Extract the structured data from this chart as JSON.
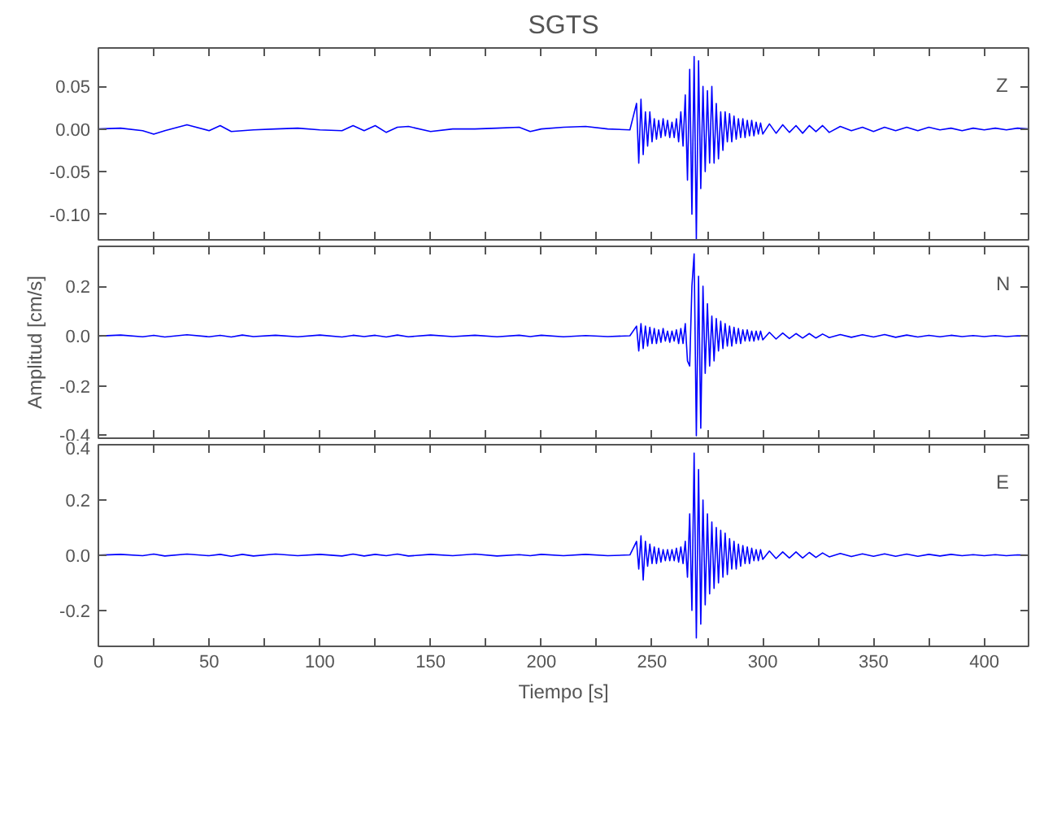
{
  "chart_data": [
    {
      "type": "line",
      "title": "SGTS",
      "annotations": [
        "Z"
      ],
      "tick_labels": "y",
      "grid": false,
      "marker": "none",
      "line_style": "solid",
      "xlim": [
        0,
        420
      ],
      "xticks": [
        0,
        {
          "value": 25,
          "label": null
        },
        50,
        {
          "value": 75,
          "label": null
        },
        100,
        {
          "value": 125,
          "label": null
        },
        150,
        {
          "value": 175,
          "label": null
        },
        200,
        {
          "value": 225,
          "label": null
        },
        250,
        {
          "value": 275,
          "label": null
        },
        300,
        {
          "value": 325,
          "label": null
        },
        350,
        {
          "value": 375,
          "label": null
        },
        400
      ],
      "ylim": [
        -0.13,
        0.095
      ],
      "yticks": [
        {
          "value": -0.1,
          "label": "-0.10"
        },
        {
          "value": -0.05,
          "label": "-0.05"
        },
        {
          "value": 0,
          "label": "0.00"
        },
        {
          "value": 0.05,
          "label": "0.05"
        }
      ],
      "x": [
        0,
        10,
        20,
        25,
        30,
        40,
        50,
        55,
        60,
        65,
        70,
        80,
        90,
        100,
        110,
        115,
        120,
        125,
        130,
        135,
        140,
        150,
        160,
        170,
        180,
        190,
        195,
        200,
        210,
        220,
        230,
        240,
        243,
        244,
        245,
        246,
        247,
        248,
        249,
        250,
        251,
        252,
        253,
        254,
        255,
        256,
        257,
        258,
        259,
        260,
        261,
        262,
        263,
        264,
        265,
        266,
        267,
        268,
        269,
        270,
        271,
        272,
        273,
        274,
        275,
        276,
        277,
        278,
        279,
        280,
        281,
        282,
        283,
        284,
        285,
        286,
        287,
        288,
        289,
        290,
        291,
        292,
        293,
        294,
        295,
        296,
        297,
        298,
        299,
        300,
        303,
        306,
        309,
        312,
        315,
        318,
        321,
        324,
        327,
        330,
        335,
        340,
        345,
        350,
        355,
        360,
        365,
        370,
        375,
        380,
        385,
        390,
        395,
        400,
        405,
        410,
        415,
        420
      ],
      "series": [
        {
          "color": "#0000ff",
          "values": [
            0,
            0.001,
            -0.002,
            -0.006,
            -0.002,
            0.005,
            -0.002,
            0.004,
            -0.003,
            -0.002,
            -0.001,
            0,
            0.001,
            -0.001,
            -0.002,
            0.004,
            -0.002,
            0.004,
            -0.004,
            0.002,
            0.003,
            -0.003,
            0,
            0,
            0.001,
            0.002,
            -0.003,
            0,
            0.002,
            0.003,
            0,
            -0.001,
            0.03,
            -0.04,
            0.035,
            -0.03,
            0.02,
            -0.02,
            0.02,
            -0.015,
            0.012,
            -0.012,
            0.01,
            -0.01,
            0.012,
            -0.008,
            0.01,
            -0.01,
            0.008,
            -0.01,
            0.012,
            -0.015,
            0.02,
            -0.02,
            0.04,
            -0.06,
            0.07,
            -0.1,
            0.085,
            -0.13,
            0.08,
            -0.07,
            0.05,
            -0.05,
            0.045,
            -0.04,
            0.05,
            -0.04,
            0.03,
            -0.035,
            0.02,
            -0.025,
            0.02,
            -0.015,
            0.018,
            -0.015,
            0.015,
            -0.012,
            0.012,
            -0.01,
            0.012,
            -0.01,
            0.01,
            -0.008,
            0.01,
            -0.008,
            0.008,
            -0.006,
            0.007,
            -0.006,
            0.006,
            -0.005,
            0.005,
            -0.004,
            0.004,
            -0.005,
            0.004,
            -0.003,
            0.004,
            -0.004,
            0.003,
            -0.002,
            0.002,
            -0.003,
            0.002,
            -0.002,
            0.002,
            -0.002,
            0.002,
            -0.001,
            0.001,
            -0.002,
            0.001,
            -0.001,
            0.001,
            -0.001,
            0.001,
            0
          ]
        }
      ]
    },
    {
      "type": "line",
      "ylabel": "Amplitud [cm/s]",
      "annotations": [
        "N"
      ],
      "tick_labels": "y",
      "grid": false,
      "marker": "none",
      "line_style": "solid",
      "xlim": [
        0,
        420
      ],
      "xticks": [
        0,
        {
          "value": 25,
          "label": null
        },
        50,
        {
          "value": 75,
          "label": null
        },
        100,
        {
          "value": 125,
          "label": null
        },
        150,
        {
          "value": 175,
          "label": null
        },
        200,
        {
          "value": 225,
          "label": null
        },
        250,
        {
          "value": 275,
          "label": null
        },
        300,
        {
          "value": 325,
          "label": null
        },
        350,
        {
          "value": 375,
          "label": null
        },
        400
      ],
      "ylim": [
        -0.41,
        0.36
      ],
      "yticks": [
        {
          "value": -0.4,
          "label": "-0.4"
        },
        {
          "value": -0.2,
          "label": "-0.2"
        },
        {
          "value": 0,
          "label": "0.0"
        },
        {
          "value": 0.2,
          "label": "0.2"
        }
      ],
      "x": [
        0,
        10,
        20,
        25,
        30,
        40,
        50,
        55,
        60,
        65,
        70,
        80,
        90,
        100,
        110,
        115,
        120,
        125,
        130,
        135,
        140,
        150,
        160,
        170,
        180,
        190,
        195,
        200,
        210,
        220,
        230,
        240,
        243,
        244,
        245,
        246,
        247,
        248,
        249,
        250,
        251,
        252,
        253,
        254,
        255,
        256,
        257,
        258,
        259,
        260,
        261,
        262,
        263,
        264,
        265,
        266,
        267,
        268,
        269,
        270,
        271,
        272,
        273,
        274,
        275,
        276,
        277,
        278,
        279,
        280,
        281,
        282,
        283,
        284,
        285,
        286,
        287,
        288,
        289,
        290,
        291,
        292,
        293,
        294,
        295,
        296,
        297,
        298,
        299,
        300,
        303,
        306,
        309,
        312,
        315,
        318,
        321,
        324,
        327,
        330,
        335,
        340,
        345,
        350,
        355,
        360,
        365,
        370,
        375,
        380,
        385,
        390,
        395,
        400,
        405,
        410,
        415,
        420
      ],
      "series": [
        {
          "color": "#0000ff",
          "values": [
            0,
            0.004,
            -0.003,
            0.003,
            -0.004,
            0.005,
            -0.003,
            0.003,
            -0.004,
            0.004,
            -0.002,
            0.003,
            -0.003,
            0.004,
            -0.004,
            0.003,
            -0.002,
            0.003,
            -0.004,
            0.004,
            -0.003,
            0.004,
            -0.002,
            0.003,
            -0.003,
            0.003,
            -0.002,
            0.003,
            -0.003,
            0.002,
            -0.002,
            0.001,
            0.04,
            -0.06,
            0.05,
            -0.05,
            0.04,
            -0.04,
            0.035,
            -0.03,
            0.03,
            -0.03,
            0.025,
            -0.025,
            0.03,
            -0.02,
            0.02,
            -0.025,
            0.02,
            -0.02,
            0.025,
            -0.03,
            0.03,
            -0.03,
            0.05,
            -0.1,
            -0.12,
            0.2,
            0.33,
            -0.4,
            0.24,
            -0.37,
            0.2,
            -0.15,
            0.13,
            -0.12,
            0.08,
            -0.1,
            0.07,
            -0.06,
            0.06,
            -0.05,
            0.05,
            -0.04,
            0.04,
            -0.04,
            0.035,
            -0.03,
            0.03,
            -0.03,
            0.025,
            -0.02,
            0.025,
            -0.02,
            0.02,
            -0.02,
            0.02,
            -0.015,
            0.02,
            -0.015,
            0.015,
            -0.012,
            0.012,
            -0.01,
            0.01,
            -0.008,
            0.01,
            -0.008,
            0.008,
            -0.006,
            0.006,
            -0.005,
            0.005,
            -0.004,
            0.006,
            -0.005,
            0.004,
            -0.004,
            0.003,
            -0.003,
            0.003,
            -0.002,
            0.002,
            -0.002,
            0.002,
            -0.002,
            0.001,
            0
          ]
        }
      ]
    },
    {
      "type": "line",
      "xlabel": "Tiempo [s]",
      "annotations": [
        "E"
      ],
      "grid": false,
      "marker": "none",
      "line_style": "solid",
      "xlim": [
        0,
        420
      ],
      "xticks": [
        0,
        {
          "value": 25,
          "label": null
        },
        50,
        {
          "value": 75,
          "label": null
        },
        100,
        {
          "value": 125,
          "label": null
        },
        150,
        {
          "value": 175,
          "label": null
        },
        200,
        {
          "value": 225,
          "label": null
        },
        250,
        {
          "value": 275,
          "label": null
        },
        300,
        {
          "value": 325,
          "label": null
        },
        350,
        {
          "value": 375,
          "label": null
        },
        400
      ],
      "ylim": [
        -0.33,
        0.4
      ],
      "yticks": [
        {
          "value": -0.2,
          "label": "-0.2"
        },
        {
          "value": 0,
          "label": "0.0"
        },
        {
          "value": 0.2,
          "label": "0.2"
        },
        {
          "value": 0.4,
          "label": "0.4"
        }
      ],
      "x": [
        0,
        10,
        20,
        25,
        30,
        40,
        50,
        55,
        60,
        65,
        70,
        80,
        90,
        100,
        110,
        115,
        120,
        125,
        130,
        135,
        140,
        150,
        160,
        170,
        180,
        190,
        195,
        200,
        210,
        220,
        230,
        240,
        243,
        244,
        245,
        246,
        247,
        248,
        249,
        250,
        251,
        252,
        253,
        254,
        255,
        256,
        257,
        258,
        259,
        260,
        261,
        262,
        263,
        264,
        265,
        266,
        267,
        268,
        269,
        270,
        271,
        272,
        273,
        274,
        275,
        276,
        277,
        278,
        279,
        280,
        281,
        282,
        283,
        284,
        285,
        286,
        287,
        288,
        289,
        290,
        291,
        292,
        293,
        294,
        295,
        296,
        297,
        298,
        299,
        300,
        303,
        306,
        309,
        312,
        315,
        318,
        321,
        324,
        327,
        330,
        335,
        340,
        345,
        350,
        355,
        360,
        365,
        370,
        375,
        380,
        385,
        390,
        395,
        400,
        405,
        410,
        415,
        420
      ],
      "series": [
        {
          "color": "#0000ff",
          "values": [
            0,
            0.003,
            -0.002,
            0.004,
            -0.003,
            0.004,
            -0.002,
            0.003,
            -0.004,
            0.003,
            -0.003,
            0.004,
            -0.002,
            0.003,
            -0.003,
            0.004,
            -0.003,
            0.003,
            -0.002,
            0.004,
            -0.003,
            0.003,
            -0.002,
            0.004,
            -0.003,
            0.002,
            -0.002,
            0.003,
            -0.002,
            0.003,
            -0.002,
            0.001,
            0.05,
            -0.05,
            0.07,
            -0.09,
            0.05,
            -0.04,
            0.04,
            -0.03,
            0.03,
            -0.03,
            0.025,
            -0.025,
            0.02,
            -0.02,
            0.02,
            -0.02,
            0.02,
            -0.02,
            0.025,
            -0.025,
            0.03,
            -0.03,
            0.05,
            -0.08,
            0.15,
            -0.2,
            0.37,
            -0.3,
            0.31,
            -0.25,
            0.2,
            -0.18,
            0.15,
            -0.14,
            0.12,
            -0.12,
            0.1,
            -0.1,
            0.09,
            -0.08,
            0.08,
            -0.07,
            0.06,
            -0.05,
            0.05,
            -0.05,
            0.04,
            -0.04,
            0.035,
            -0.03,
            0.03,
            -0.03,
            0.025,
            -0.02,
            0.02,
            -0.02,
            0.02,
            -0.015,
            0.015,
            -0.012,
            0.012,
            -0.01,
            0.012,
            -0.01,
            0.01,
            -0.008,
            0.008,
            -0.006,
            0.006,
            -0.005,
            0.005,
            -0.004,
            0.005,
            -0.004,
            0.004,
            -0.004,
            0.003,
            -0.003,
            0.003,
            -0.002,
            0.002,
            -0.002,
            0.002,
            -0.002,
            0.001,
            0
          ]
        }
      ]
    }
  ]
}
